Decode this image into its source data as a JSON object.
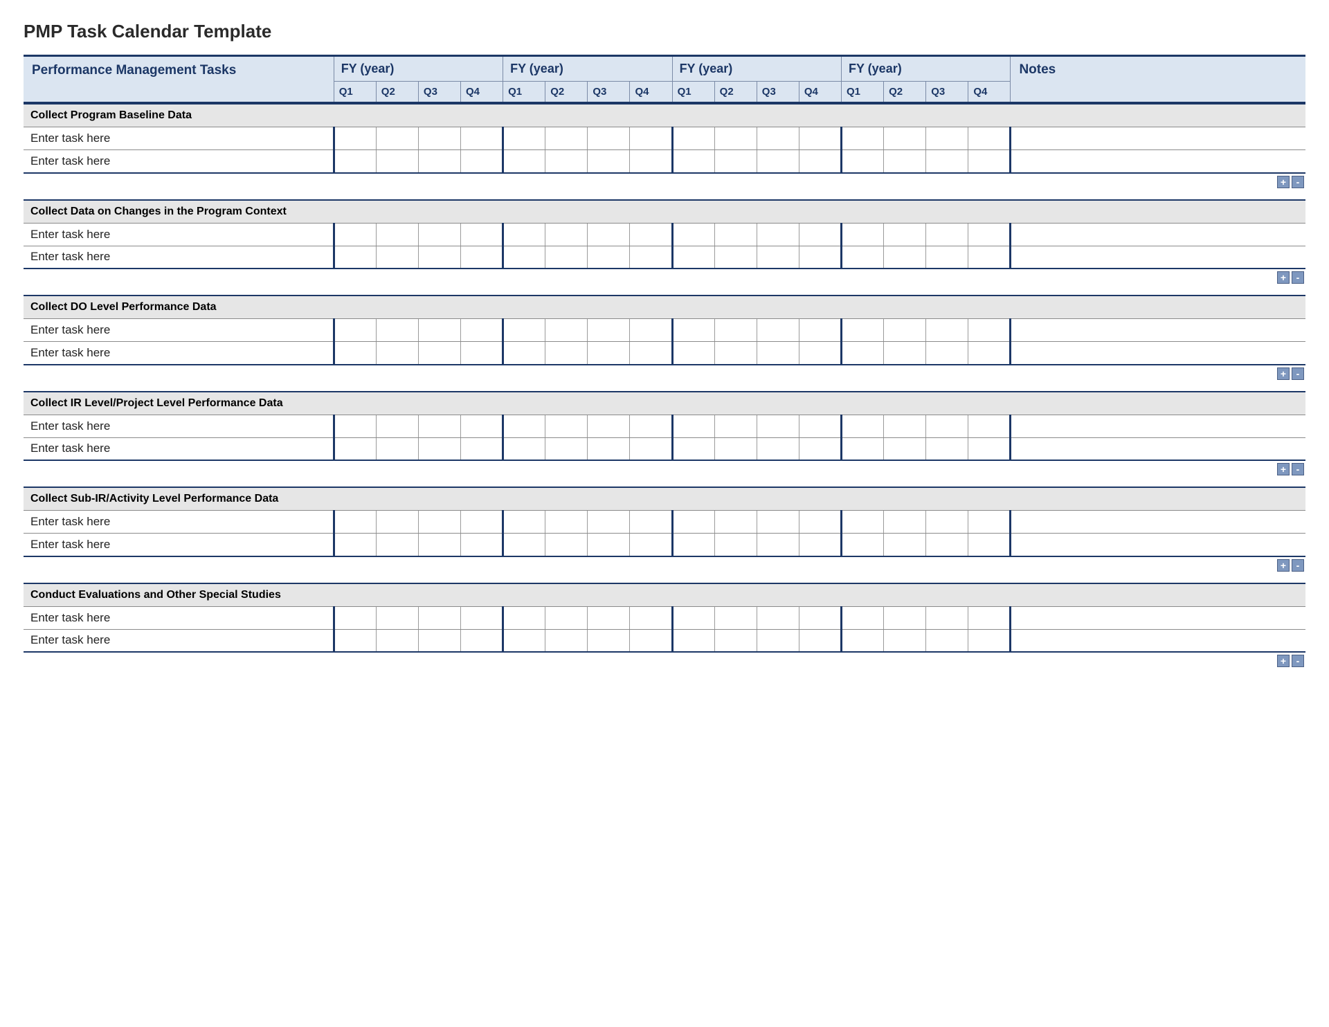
{
  "title": "PMP Task Calendar Template",
  "colors": {
    "border_dark": "#1c3766",
    "header_bg": "#dbe5f1",
    "section_bg": "#e6e6e6",
    "grid_line": "#9a9a9a",
    "btn_bg": "#7f98bf",
    "btn_border": "#4a5f85",
    "text": "#000000",
    "page_bg": "#ffffff"
  },
  "layout": {
    "task_col_pct": 24.2,
    "quarter_col_pct": 3.3,
    "notes_col_pct": 23,
    "fiscal_years": 4,
    "quarters_per_year": 4
  },
  "header": {
    "tasks_label": "Performance Management Tasks",
    "fy_label": "FY  (year)",
    "notes_label": "Notes",
    "quarters": [
      "Q1",
      "Q2",
      "Q3",
      "Q4"
    ]
  },
  "buttons": {
    "add": "+",
    "remove": "-"
  },
  "sections": [
    {
      "title": "Collect Program Baseline Data",
      "rows": [
        "Enter task here",
        "Enter task here"
      ]
    },
    {
      "title": "Collect Data on Changes in the Program Context",
      "rows": [
        "Enter task here",
        "Enter task here"
      ]
    },
    {
      "title": "Collect DO Level Performance Data",
      "rows": [
        "Enter task here",
        "Enter task here"
      ]
    },
    {
      "title": "Collect IR Level/Project Level Performance Data",
      "rows": [
        "Enter task here",
        "Enter task here"
      ]
    },
    {
      "title": "Collect Sub-IR/Activity Level Performance Data",
      "rows": [
        "Enter task here",
        "Enter task here"
      ]
    },
    {
      "title": "Conduct Evaluations and Other Special Studies",
      "rows": [
        "Enter task here",
        "Enter task here"
      ]
    }
  ]
}
